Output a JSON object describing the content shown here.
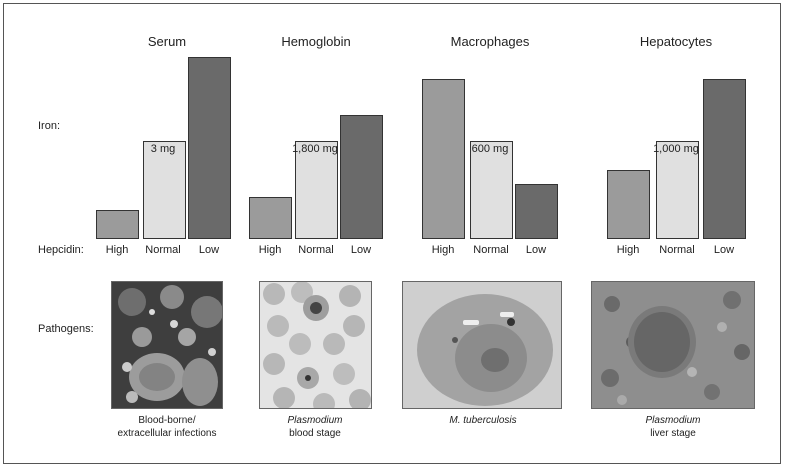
{
  "row_labels": {
    "iron": "Iron:",
    "hepcidin": "Hepcidin:",
    "pathogens": "Pathogens:"
  },
  "levels": [
    "High",
    "Normal",
    "Low"
  ],
  "panels": [
    {
      "title": "Serum",
      "normal_amount": "3 mg",
      "bars": {
        "High": 0.16,
        "Normal": 0.54,
        "Low": 1.0
      },
      "caption_line1": "Blood-borne/",
      "caption_line2": "extracellular infections",
      "italic_line1": false
    },
    {
      "title": "Hemoglobin",
      "normal_amount": "1,800 mg",
      "bars": {
        "High": 0.23,
        "Normal": 0.54,
        "Low": 0.68
      },
      "caption_line1": "Plasmodium",
      "caption_line2": "blood stage",
      "italic_line1": true
    },
    {
      "title": "Macrophages",
      "normal_amount": "600 mg",
      "bars": {
        "High": 0.88,
        "Normal": 0.54,
        "Low": 0.3
      },
      "caption_line1": "M. tuberculosis",
      "caption_line2": "",
      "italic_line1": true
    },
    {
      "title": "Hepatocytes",
      "normal_amount": "1,000 mg",
      "bars": {
        "High": 0.38,
        "Normal": 0.54,
        "Low": 0.88
      },
      "caption_line1": "Plasmodium",
      "caption_line2": "liver stage",
      "italic_line1": true
    }
  ]
}
